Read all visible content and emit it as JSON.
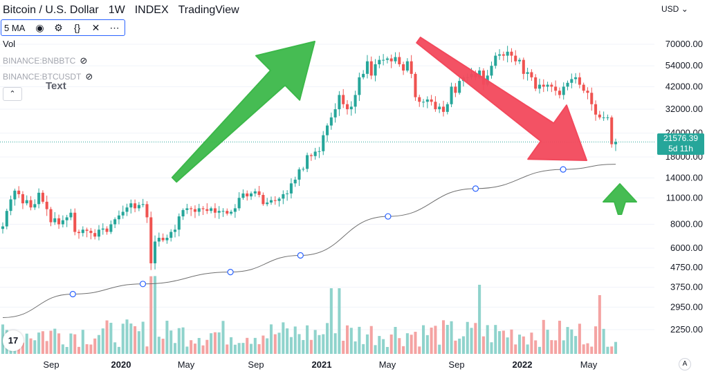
{
  "header": {
    "symbol_title": "Bitcoin / U.S. Dollar",
    "interval": "1W",
    "exchange": "INDEX",
    "brand": "TradingView"
  },
  "indicator_bar": {
    "label": "5 MA",
    "icons": [
      "eye-icon",
      "settings-icon",
      "source-code-icon",
      "close-icon",
      "more-icon"
    ]
  },
  "volume_label": "Vol",
  "compare_symbols": [
    {
      "label": "BINANCE:BNBBTC",
      "icon": "hidden-eye-icon"
    },
    {
      "label": "BINANCE:BTCUSDT",
      "icon": "hidden-eye-icon"
    }
  ],
  "annotation_text": "Text",
  "currency_selector": "USD",
  "price_axis": {
    "labels": [
      "70000.00",
      "54000.00",
      "42000.00",
      "32000.00",
      "24000.00",
      "18000.00",
      "14000.00",
      "11000.00",
      "8000.00",
      "6000.00",
      "4750.00",
      "3750.00",
      "2950.00",
      "2250.00"
    ],
    "last_price": "21576.39",
    "countdown": "5d 11h"
  },
  "time_axis": {
    "labels": [
      {
        "text": "Sep",
        "bold": false
      },
      {
        "text": "2020",
        "bold": true
      },
      {
        "text": "May",
        "bold": false
      },
      {
        "text": "Sep",
        "bold": false
      },
      {
        "text": "2021",
        "bold": true
      },
      {
        "text": "May",
        "bold": false
      },
      {
        "text": "Sep",
        "bold": false
      },
      {
        "text": "2022",
        "bold": true
      },
      {
        "text": "May",
        "bold": false
      }
    ]
  },
  "auto_scale_label": "A",
  "logo_text": "17",
  "colors": {
    "up": "#26a69a",
    "down": "#ef5350",
    "vol_up": "#8fd3cc",
    "vol_down": "#f4a3a2",
    "ma": "#6e6e6e",
    "arrow_green": "#3cb84a",
    "arrow_red": "#f2495c"
  },
  "chart_data": {
    "type": "candlestick",
    "title": "Bitcoin / U.S. Dollar, 1W",
    "y_scale": "log",
    "ylim": [
      2000,
      80000
    ],
    "x_range": [
      "2019-07",
      "2022-06"
    ],
    "ma_period": 5,
    "ma_series_anchor_points": [
      {
        "date": "2019-07",
        "value": 2600
      },
      {
        "date": "2019-11",
        "value": 3450
      },
      {
        "date": "2020-03",
        "value": 3900
      },
      {
        "date": "2020-08",
        "value": 4500
      },
      {
        "date": "2020-12",
        "value": 5500
      },
      {
        "date": "2021-05",
        "value": 8800
      },
      {
        "date": "2021-10",
        "value": 12300
      },
      {
        "date": "2022-03",
        "value": 15500
      },
      {
        "date": "2022-06",
        "value": 16500
      }
    ],
    "closes": [
      7800,
      9400,
      10800,
      12000,
      11500,
      10300,
      10700,
      9800,
      10200,
      11700,
      10500,
      9600,
      8200,
      8600,
      8000,
      8400,
      8700,
      9200,
      7300,
      7200,
      7500,
      7400,
      7200,
      6900,
      7500,
      7600,
      7300,
      8000,
      8500,
      8900,
      9300,
      9800,
      10300,
      9700,
      10100,
      10200,
      8700,
      5000,
      6500,
      6800,
      6600,
      6800,
      7300,
      7500,
      8800,
      9500,
      9700,
      9600,
      9300,
      9700,
      9600,
      9400,
      9700,
      9200,
      9400,
      9400,
      9100,
      9300,
      9700,
      11000,
      11600,
      11200,
      11600,
      11900,
      11400,
      10200,
      10400,
      10700,
      10600,
      10900,
      11500,
      11600,
      13100,
      13700,
      15500,
      15600,
      18400,
      18200,
      19200,
      19300,
      23400,
      26300,
      29000,
      32000,
      38000,
      34000,
      32000,
      33000,
      38000,
      47000,
      49000,
      57000,
      48000,
      55000,
      58000,
      58000,
      59000,
      57000,
      60000,
      55000,
      51000,
      57000,
      49000,
      37000,
      35000,
      35000,
      36000,
      35000,
      32000,
      33000,
      31000,
      34000,
      42000,
      39000,
      45000,
      47000,
      47000,
      49000,
      47000,
      51000,
      43000,
      48000,
      54000,
      61000,
      62000,
      61000,
      64000,
      61000,
      57000,
      58000,
      49000,
      50000,
      47000,
      41000,
      43000,
      42000,
      43000,
      42000,
      40000,
      38000,
      42000,
      44000,
      46000,
      47000,
      43000,
      40000,
      39000,
      34000,
      30000,
      29000,
      29000,
      29000,
      21000,
      21576
    ],
    "annotations": [
      {
        "type": "arrow",
        "direction": "up-right",
        "color": "green"
      },
      {
        "type": "arrow",
        "direction": "down-right",
        "color": "red"
      },
      {
        "type": "arrow",
        "direction": "up",
        "color": "green"
      },
      {
        "type": "text",
        "text": "Text"
      }
    ]
  }
}
